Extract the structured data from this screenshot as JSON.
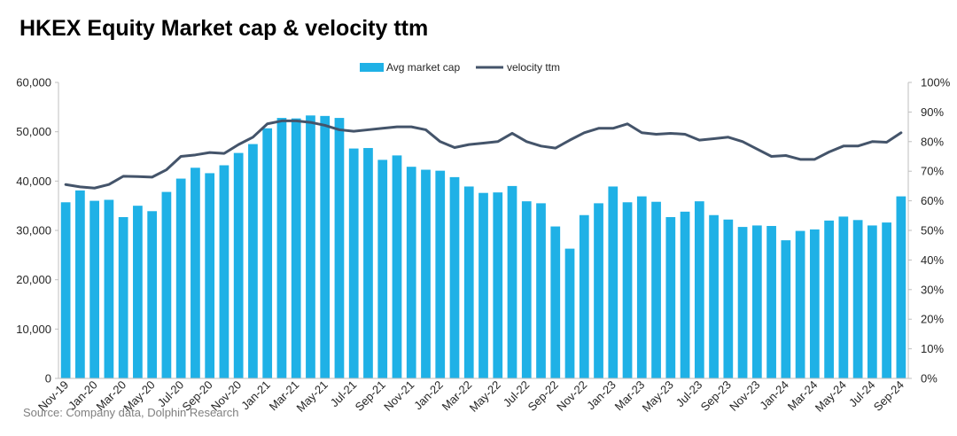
{
  "chart_data": {
    "type": "bar",
    "title": "HKEX Equity Market cap & velocity ttm",
    "source": "Source: Company data, Dolphin Research",
    "series": [
      {
        "name": "Avg market cap",
        "type": "bar",
        "axis": "left",
        "color": "#1fb1e6",
        "values": [
          35700,
          38100,
          36000,
          36200,
          32700,
          35000,
          33900,
          37800,
          40500,
          42700,
          41600,
          43200,
          45700,
          47500,
          50700,
          52800,
          52700,
          53300,
          53200,
          52800,
          46600,
          46700,
          44300,
          45200,
          42900,
          42300,
          42100,
          40800,
          38900,
          37600,
          37700,
          39000,
          35900,
          35500,
          30800,
          26300,
          33100,
          35500,
          38900,
          35700,
          36900,
          35800,
          32700,
          33800,
          35900,
          33100,
          32200,
          30700,
          31000,
          30900,
          28000,
          29900,
          30200,
          32000,
          32800,
          32100,
          31000,
          31600,
          36900
        ]
      },
      {
        "name": "velocity ttm",
        "type": "line",
        "axis": "right",
        "color": "#44546a",
        "values": [
          65.5,
          64.7,
          64.3,
          65.5,
          68.3,
          68.2,
          68.0,
          70.5,
          75.0,
          75.5,
          76.3,
          76.0,
          79.0,
          81.5,
          86.0,
          87.0,
          87.0,
          86.5,
          85.5,
          84.0,
          83.5,
          84.0,
          84.5,
          85.0,
          85.0,
          84.0,
          80.0,
          78.0,
          79.0,
          79.5,
          80.0,
          82.8,
          80.0,
          78.5,
          77.8,
          80.5,
          83.0,
          84.5,
          84.5,
          86.0,
          83.0,
          82.5,
          82.8,
          82.5,
          80.5,
          81.0,
          81.5,
          80.0,
          77.5,
          75.0,
          75.3,
          74.0,
          74.0,
          76.5,
          78.5,
          78.5,
          80.0,
          79.8,
          83.0
        ]
      }
    ],
    "x_tick_labels": [
      "Nov-19",
      "Jan-20",
      "Mar-20",
      "May-20",
      "Jul-20",
      "Sep-20",
      "Nov-20",
      "Jan-21",
      "Mar-21",
      "May-21",
      "Jul-21",
      "Sep-21",
      "Nov-21",
      "Jan-22",
      "Mar-22",
      "May-22",
      "Jul-22",
      "Sep-22",
      "Nov-22",
      "Jan-23",
      "Mar-23",
      "May-23",
      "Jul-23",
      "Sep-23",
      "Nov-23",
      "Jan-24",
      "Mar-24",
      "May-24",
      "Jul-24",
      "Sep-24"
    ],
    "y_left": {
      "min": 0,
      "max": 60000,
      "ticks": [
        "0",
        "10,000",
        "20,000",
        "30,000",
        "40,000",
        "50,000",
        "60,000"
      ]
    },
    "y_right": {
      "min": 0,
      "max": 100,
      "ticks": [
        "0%",
        "10%",
        "20%",
        "30%",
        "40%",
        "50%",
        "60%",
        "70%",
        "80%",
        "90%",
        "100%"
      ]
    },
    "legend_position": "top-center",
    "grid": false
  }
}
